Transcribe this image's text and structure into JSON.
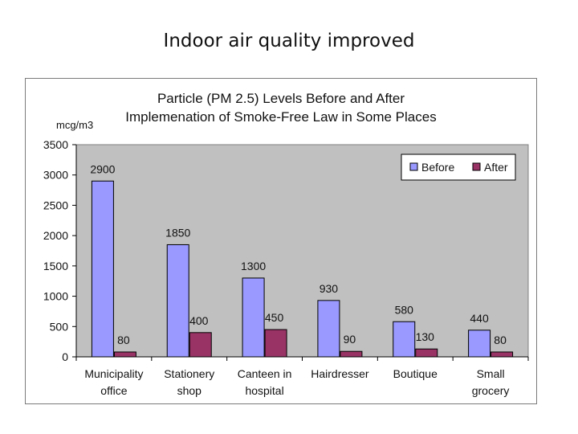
{
  "slide": {
    "title": "Indoor air quality improved"
  },
  "chart_data": {
    "type": "bar",
    "title": [
      "Particle (PM 2.5) Levels Before and After",
      "Implemenation of Smoke-Free Law in Some Places"
    ],
    "ylabel": "mcg/m3",
    "xlabel": "",
    "ylim": [
      0,
      3500
    ],
    "yticks": [
      0,
      500,
      1000,
      1500,
      2000,
      2500,
      3000,
      3500
    ],
    "categories": [
      [
        "Municipality",
        "office"
      ],
      [
        "Stationery",
        "shop"
      ],
      [
        "Canteen in",
        "hospital"
      ],
      [
        "Hairdresser"
      ],
      [
        "Boutique"
      ],
      [
        "Small",
        "grocery"
      ]
    ],
    "series": [
      {
        "name": "Before",
        "color": "#9999ff",
        "values": [
          2900,
          1850,
          1300,
          930,
          580,
          440
        ]
      },
      {
        "name": "After",
        "color": "#993366",
        "values": [
          80,
          400,
          450,
          90,
          130,
          80
        ]
      }
    ],
    "plot_background": "#c0c0c0",
    "grid": false,
    "legend_position": "top-right",
    "data_labels": true
  }
}
